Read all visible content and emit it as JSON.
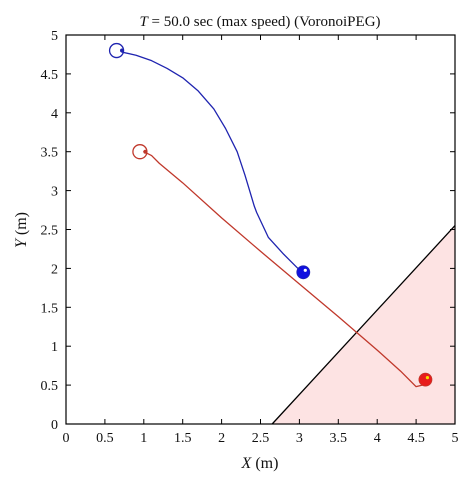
{
  "chart_data": {
    "type": "line",
    "title": "T = 50.0 sec (max speed) (VoronoiPEG)",
    "title_parts": {
      "variable": "T",
      "rest": " = 50.0 sec (max speed) (VoronoiPEG)"
    },
    "xlabel": {
      "variable": "X",
      "unit": " (m)"
    },
    "ylabel": {
      "variable": "Y",
      "unit": " (m)"
    },
    "xlim": [
      0,
      5
    ],
    "ylim": [
      0,
      5
    ],
    "xticks": [
      "0",
      "0.5",
      "1",
      "1.5",
      "2",
      "2.5",
      "3",
      "3.5",
      "4",
      "4.5",
      "5"
    ],
    "yticks": [
      "0",
      "0.5",
      "1",
      "1.5",
      "2",
      "2.5",
      "3",
      "3.5",
      "4",
      "4.5",
      "5"
    ],
    "grid": false,
    "series": [
      {
        "color": "#1f24b0",
        "start": [
          0.65,
          4.8
        ],
        "end": [
          3.05,
          1.95
        ],
        "x": [
          0.72,
          0.9,
          1.1,
          1.3,
          1.5,
          1.7,
          1.9,
          2.05,
          2.2,
          2.3,
          2.36,
          2.42,
          2.45,
          2.6,
          2.8,
          3.0
        ],
        "y": [
          4.78,
          4.74,
          4.67,
          4.57,
          4.45,
          4.28,
          4.05,
          3.8,
          3.5,
          3.2,
          3.0,
          2.8,
          2.72,
          2.4,
          2.18,
          1.98
        ]
      },
      {
        "color": "#c0382b",
        "start": [
          0.95,
          3.5
        ],
        "end": [
          4.62,
          0.57
        ],
        "x": [
          1.0,
          1.1,
          1.2,
          1.5,
          2.0,
          2.5,
          3.0,
          3.5,
          4.0,
          4.3,
          4.5,
          4.58
        ],
        "y": [
          3.5,
          3.45,
          3.35,
          3.1,
          2.65,
          2.22,
          1.8,
          1.38,
          0.95,
          0.68,
          0.48,
          0.5
        ]
      }
    ],
    "region": {
      "fill": "#fde3e3",
      "edge": "#000000",
      "vertices": [
        [
          2.65,
          0
        ],
        [
          5,
          2.55
        ],
        [
          5,
          0
        ]
      ]
    }
  }
}
